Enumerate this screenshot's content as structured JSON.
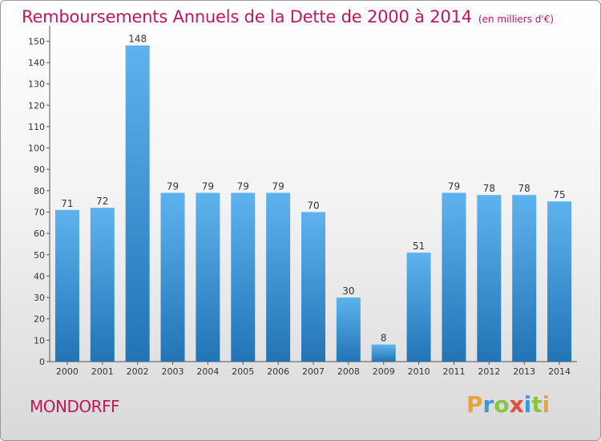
{
  "title": "Remboursements Annuels de la Dette de 2000 à 2014",
  "unit": "(en milliers d'€)",
  "commune": "MONDORFF",
  "logo": {
    "letters": [
      "P",
      "r",
      "o",
      "x",
      "i",
      "t",
      "i"
    ],
    "colors": [
      "#e8a33c",
      "#3b9ad9",
      "#8bc53f",
      "#e84c3d",
      "#3b9ad9",
      "#8bc53f",
      "#e8a33c"
    ]
  },
  "colors": {
    "accent": "#c2185b",
    "bar_top": "#5eb3ee",
    "bar_bottom": "#2274b5"
  },
  "chart_data": {
    "type": "bar",
    "categories": [
      "2000",
      "2001",
      "2002",
      "2003",
      "2004",
      "2005",
      "2006",
      "2007",
      "2008",
      "2009",
      "2010",
      "2011",
      "2012",
      "2013",
      "2014"
    ],
    "values": [
      71,
      72,
      148,
      79,
      79,
      79,
      79,
      70,
      30,
      8,
      51,
      79,
      78,
      78,
      75
    ],
    "ylim": [
      0,
      155
    ],
    "yticks": [
      0,
      10,
      20,
      30,
      40,
      50,
      60,
      70,
      80,
      90,
      100,
      110,
      120,
      130,
      140,
      150
    ],
    "grid": false,
    "legend": "none"
  }
}
